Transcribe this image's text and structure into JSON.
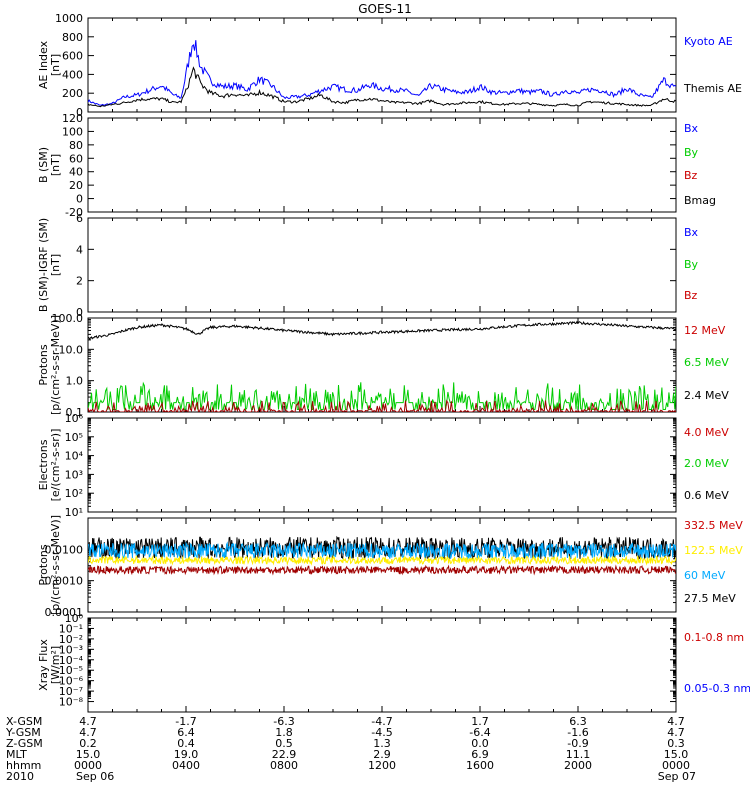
{
  "title": "GOES-11",
  "colors": {
    "blue": "#0000ff",
    "green": "#00cc00",
    "red": "#cc0000",
    "darkred": "#a00000",
    "black": "#000000",
    "yellow": "#ffee00",
    "cyan": "#00aaff"
  },
  "chart_data": [
    {
      "type": "line",
      "id": "ae",
      "ylabel": [
        "AE Index",
        "[nT]"
      ],
      "ylim": [
        0,
        1000
      ],
      "yticks": [
        "0",
        "200",
        "400",
        "600",
        "800",
        "1000"
      ],
      "legend": [
        {
          "label": "Kyoto AE",
          "color": "#0000ff"
        },
        {
          "label": "Themis AE",
          "color": "#000000"
        }
      ],
      "x_hours": [
        0,
        0.5,
        1,
        1.5,
        2,
        2.5,
        3,
        3.5,
        3.8,
        4,
        4.3,
        4.6,
        5,
        5.5,
        6,
        6.5,
        7,
        7.5,
        8,
        8.5,
        9,
        9.5,
        10,
        10.5,
        11,
        11.5,
        12,
        12.5,
        13,
        13.5,
        14,
        14.5,
        15,
        15.5,
        16,
        16.5,
        17,
        17.5,
        18,
        18.5,
        19,
        19.5,
        20,
        20.5,
        21,
        21.5,
        22,
        22.5,
        23,
        23.5,
        24
      ],
      "series": [
        {
          "name": "Kyoto AE",
          "color": "#0000ff",
          "values": [
            120,
            70,
            90,
            160,
            180,
            230,
            280,
            180,
            150,
            400,
            780,
            480,
            330,
            270,
            280,
            240,
            350,
            280,
            150,
            160,
            180,
            230,
            270,
            240,
            230,
            290,
            250,
            240,
            220,
            170,
            280,
            240,
            210,
            210,
            270,
            210,
            200,
            230,
            210,
            220,
            180,
            230,
            200,
            240,
            230,
            180,
            250,
            180,
            150,
            340,
            250
          ]
        },
        {
          "name": "Themis AE",
          "color": "#000000",
          "values": [
            80,
            60,
            80,
            100,
            130,
            140,
            140,
            100,
            110,
            220,
            450,
            300,
            200,
            170,
            190,
            170,
            210,
            170,
            110,
            110,
            140,
            180,
            110,
            100,
            130,
            140,
            120,
            100,
            100,
            90,
            120,
            80,
            90,
            100,
            110,
            90,
            80,
            90,
            90,
            80,
            70,
            80,
            70,
            110,
            100,
            90,
            80,
            70,
            70,
            140,
            110
          ]
        }
      ]
    },
    {
      "type": "line",
      "id": "bsm",
      "ylabel": [
        "B (SM)",
        "[nT]"
      ],
      "ylim": [
        -20,
        120
      ],
      "yticks": [
        "-20",
        "0",
        "20",
        "40",
        "60",
        "80",
        "100",
        "120"
      ],
      "legend": [
        {
          "label": "Bx",
          "color": "#0000ff"
        },
        {
          "label": "By",
          "color": "#00cc00"
        },
        {
          "label": "Bz",
          "color": "#cc0000"
        },
        {
          "label": "Bmag",
          "color": "#000000"
        }
      ],
      "series": []
    },
    {
      "type": "line",
      "id": "bigrf",
      "ylabel": [
        "B (SM)-IGRF (SM)",
        "[nT]"
      ],
      "ylim": [
        0,
        6
      ],
      "yticks": [
        "0",
        "2",
        "4",
        "6"
      ],
      "legend": [
        {
          "label": "Bx",
          "color": "#0000ff"
        },
        {
          "label": "By",
          "color": "#00cc00"
        },
        {
          "label": "Bz",
          "color": "#cc0000"
        }
      ],
      "series": []
    },
    {
      "type": "line",
      "id": "protons_lo",
      "scale": "log",
      "ylabel": [
        "Protons",
        "[p/(cm²-s-sr-MeV)]"
      ],
      "ylim": [
        0.1,
        100
      ],
      "yticks": [
        "0.1",
        "1.0",
        "10.0",
        "100.0"
      ],
      "legend": [
        {
          "label": "12 MeV",
          "color": "#cc0000"
        },
        {
          "label": "6.5 MeV",
          "color": "#00cc00"
        },
        {
          "label": "2.4 MeV",
          "color": "#000000"
        }
      ],
      "series": [
        {
          "name": "2.4 MeV",
          "color": "#000000",
          "level": 40,
          "spread": 0.08,
          "x_hours": [
            0,
            1,
            2,
            3,
            4,
            4.5,
            5,
            6,
            8,
            10,
            12,
            14,
            16,
            18,
            20,
            22,
            24
          ],
          "values": [
            22,
            30,
            50,
            60,
            45,
            30,
            50,
            55,
            40,
            30,
            35,
            40,
            45,
            60,
            70,
            55,
            45
          ]
        },
        {
          "name": "6.5 MeV",
          "color": "#00cc00",
          "level": 0.2,
          "spread": 0.5
        },
        {
          "name": "12 MeV",
          "color": "#a00000",
          "level": 0.11,
          "spread": 0.25
        }
      ]
    },
    {
      "type": "line",
      "id": "electrons",
      "scale": "log",
      "ylabel": [
        "Electrons",
        "[e/(cm²-s-sr)]"
      ],
      "ylim": [
        10,
        1000000
      ],
      "yticks": [
        "10¹",
        "10²",
        "10³",
        "10⁴",
        "10⁵",
        "10⁶"
      ],
      "legend": [
        {
          "label": "4.0 MeV",
          "color": "#cc0000"
        },
        {
          "label": "2.0 MeV",
          "color": "#00cc00"
        },
        {
          "label": "0.6 MeV",
          "color": "#000000"
        }
      ],
      "series": []
    },
    {
      "type": "line",
      "id": "protons_hi",
      "scale": "log",
      "ylabel": [
        "Protons",
        "[p/(cm²-s-sr-MeV)]"
      ],
      "ylim": [
        0.0001,
        0.1
      ],
      "yticks": [
        "0.0001",
        "0.0010",
        "0.0100"
      ],
      "legend": [
        {
          "label": "332.5 MeV",
          "color": "#cc0000"
        },
        {
          "label": "122.5 MeV",
          "color": "#ffee00"
        },
        {
          "label": "60 MeV",
          "color": "#00aaff"
        },
        {
          "label": "27.5 MeV",
          "color": "#000000"
        }
      ],
      "series": [
        {
          "name": "27.5 MeV",
          "color": "#000000",
          "level": 0.011,
          "spread": 0.35
        },
        {
          "name": "60 MeV",
          "color": "#00aaff",
          "level": 0.009,
          "spread": 0.25
        },
        {
          "name": "122.5 MeV",
          "color": "#ffee00",
          "level": 0.0045,
          "spread": 0.12
        },
        {
          "name": "332.5 MeV",
          "color": "#a00000",
          "level": 0.0022,
          "spread": 0.12
        }
      ]
    },
    {
      "type": "line",
      "id": "xray",
      "scale": "log",
      "ylabel": [
        "Xray Flux",
        "[W/m²]"
      ],
      "ylim": [
        1e-09,
        1
      ],
      "yticks": [
        "10⁻⁸",
        "10⁻⁷",
        "10⁻⁶",
        "10⁻⁵",
        "10⁻⁴",
        "10⁻³",
        "10⁻²",
        "10⁻¹",
        "10⁰"
      ],
      "legend": [
        {
          "label": "0.1-0.8 nm",
          "color": "#cc0000"
        },
        {
          "label": "0.05-0.3 nm",
          "color": "#0000ff"
        }
      ],
      "series": []
    }
  ],
  "footer": {
    "row_labels": [
      "X-GSM",
      "Y-GSM",
      "Z-GSM",
      "MLT",
      "hhmm",
      "2010"
    ],
    "columns": [
      {
        "values": [
          "4.7",
          "4.7",
          "0.2",
          "15.0",
          "0000",
          "Sep 06"
        ]
      },
      {
        "values": [
          "-1.7",
          "6.4",
          "0.4",
          "19.0",
          "0400",
          ""
        ]
      },
      {
        "values": [
          "-6.3",
          "1.8",
          "0.5",
          "22.9",
          "0800",
          ""
        ]
      },
      {
        "values": [
          "-4.7",
          "-4.5",
          "1.3",
          "2.9",
          "1200",
          ""
        ]
      },
      {
        "values": [
          "1.7",
          "-6.4",
          "0.0",
          "6.9",
          "1600",
          ""
        ]
      },
      {
        "values": [
          "6.3",
          "-1.6",
          "-0.9",
          "11.1",
          "2000",
          ""
        ]
      },
      {
        "values": [
          "4.7",
          "4.7",
          "0.3",
          "15.0",
          "0000",
          "Sep 07"
        ]
      }
    ]
  }
}
